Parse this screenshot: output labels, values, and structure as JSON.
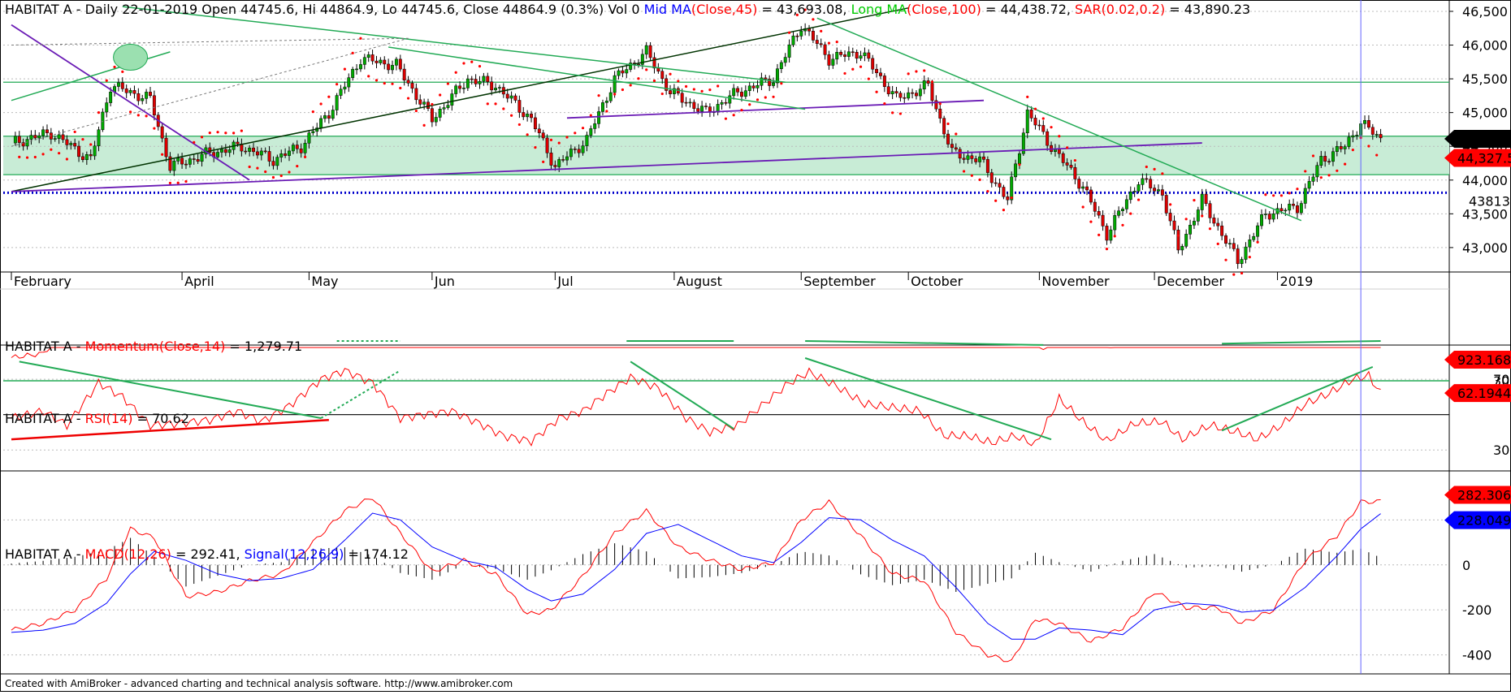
{
  "chart_data": [
    {
      "type": "candlestick",
      "panel": "price",
      "header": {
        "prefix": "HABITAT A - Daily 22-01-2019 Open 44745.6, Hi 44864.9, Lo 44745.6, Close 44864.9 (0.3%) Vol 0",
        "mid_ma_label": "Mid MA",
        "mid_ma_args": "(Close,45)",
        "mid_ma_value": " = 43,693.08,",
        "long_ma_label": "Long MA",
        "long_ma_args": "(Close,100)",
        "long_ma_value": " = 44,438.72,",
        "sar_label": "SAR",
        "sar_args": "(0.02,0.2)",
        "sar_value": " = 43,890.23"
      },
      "y_ticks": [
        "46,500",
        "46,000",
        "45,500",
        "45,000",
        "44,500",
        "44,000",
        "43,500",
        "43,000"
      ],
      "y_tick_values": [
        46500,
        46000,
        45500,
        45000,
        44500,
        44000,
        43500,
        43000
      ],
      "ylim": [
        42650,
        46620
      ],
      "x_labels": [
        "February",
        "April",
        "May",
        "Jun",
        "Jul",
        "August",
        "September",
        "October",
        "November",
        "December",
        "2019"
      ],
      "x_label_days": [
        0,
        43,
        75,
        106,
        137,
        167,
        199,
        226,
        259,
        288,
        319
      ],
      "x_range_days": [
        0,
        350
      ],
      "price_markers": [
        {
          "label": "44,610.4",
          "value": 44610.4,
          "color": "#000000"
        },
        {
          "label": "44,327.5",
          "value": 44327.5,
          "color": "#ff0000"
        }
      ],
      "support_label": "43813",
      "support_value": 43813,
      "close_path": [
        [
          0,
          44550
        ],
        [
          10,
          44700
        ],
        [
          20,
          44300
        ],
        [
          25,
          45400
        ],
        [
          35,
          45200
        ],
        [
          40,
          44200
        ],
        [
          50,
          44400
        ],
        [
          58,
          44500
        ],
        [
          66,
          44300
        ],
        [
          73,
          44500
        ],
        [
          80,
          45000
        ],
        [
          88,
          45800
        ],
        [
          97,
          45700
        ],
        [
          106,
          44900
        ],
        [
          115,
          45500
        ],
        [
          122,
          45400
        ],
        [
          131,
          44900
        ],
        [
          137,
          44200
        ],
        [
          145,
          44600
        ],
        [
          152,
          45500
        ],
        [
          160,
          45900
        ],
        [
          166,
          45300
        ],
        [
          175,
          45000
        ],
        [
          183,
          45300
        ],
        [
          192,
          45500
        ],
        [
          199,
          46300
        ],
        [
          206,
          45800
        ],
        [
          214,
          45900
        ],
        [
          223,
          45200
        ],
        [
          231,
          45400
        ],
        [
          237,
          44400
        ],
        [
          244,
          44300
        ],
        [
          251,
          43700
        ],
        [
          256,
          45000
        ],
        [
          262,
          44500
        ],
        [
          270,
          43900
        ],
        [
          276,
          43200
        ],
        [
          284,
          44000
        ],
        [
          290,
          43800
        ],
        [
          294,
          42950
        ],
        [
          300,
          43700
        ],
        [
          309,
          42800
        ],
        [
          316,
          43500
        ],
        [
          324,
          43600
        ],
        [
          330,
          44300
        ],
        [
          336,
          44500
        ],
        [
          340,
          44850
        ],
        [
          345,
          44610
        ]
      ],
      "horizontal_lines": [
        45450,
        44650,
        44080
      ],
      "band": [
        44080,
        44650
      ],
      "series": [
        {
          "name": "Mid MA",
          "color": "#0000ff"
        },
        {
          "name": "Long MA",
          "color": "#00cc00"
        },
        {
          "name": "SAR",
          "color": "#ff0000"
        }
      ]
    },
    {
      "type": "line",
      "panel": "momentum",
      "header": {
        "prefix": "HABITAT A - ",
        "label": "Momentum",
        "args": "(Close,14)",
        "value": " = 1,279.71"
      },
      "y_ticks": [
        "30"
      ],
      "value_marker": {
        "label": "923.168",
        "color": "#ff0000"
      },
      "path": [
        [
          0,
          -2400
        ],
        [
          8,
          -2100
        ],
        [
          14,
          -200
        ],
        [
          22,
          -300
        ],
        [
          28,
          600
        ],
        [
          35,
          -1000
        ],
        [
          42,
          -400
        ],
        [
          50,
          -100
        ],
        [
          57,
          300
        ],
        [
          63,
          -300
        ],
        [
          70,
          500
        ],
        [
          78,
          800
        ],
        [
          86,
          1200
        ],
        [
          93,
          1000
        ],
        [
          100,
          -100
        ],
        [
          106,
          -700
        ],
        [
          112,
          400
        ],
        [
          120,
          -200
        ],
        [
          128,
          -300
        ],
        [
          133,
          -1600
        ],
        [
          140,
          -400
        ],
        [
          146,
          -200
        ],
        [
          151,
          700
        ],
        [
          157,
          1400
        ],
        [
          163,
          900
        ],
        [
          170,
          -200
        ],
        [
          176,
          -1100
        ],
        [
          182,
          -700
        ],
        [
          188,
          500
        ],
        [
          195,
          900
        ],
        [
          202,
          1400
        ],
        [
          210,
          900
        ],
        [
          217,
          400
        ],
        [
          224,
          -200
        ],
        [
          231,
          400
        ],
        [
          236,
          -900
        ],
        [
          242,
          -1000
        ],
        [
          248,
          -1300
        ],
        [
          254,
          -1200
        ],
        [
          260,
          -1700
        ],
        [
          264,
          100
        ],
        [
          270,
          -600
        ],
        [
          276,
          -1700
        ],
        [
          283,
          -400
        ],
        [
          289,
          -500
        ],
        [
          294,
          -1400
        ],
        [
          300,
          -800
        ],
        [
          307,
          -400
        ],
        [
          312,
          -1500
        ],
        [
          318,
          -1000
        ],
        [
          325,
          100
        ],
        [
          332,
          500
        ],
        [
          338,
          1100
        ],
        [
          342,
          1000
        ],
        [
          345,
          923
        ]
      ],
      "ylim": [
        -2600,
        1900
      ]
    },
    {
      "type": "line",
      "panel": "rsi",
      "header": {
        "prefix": "HABITAT A - ",
        "label": "RSI",
        "args": "(14)",
        "value": " = 70.62"
      },
      "y_ticks": [
        "70",
        "30"
      ],
      "y_tick_values": [
        70,
        30
      ],
      "value_marker": {
        "label": "62.1944",
        "color": "#ff0000"
      },
      "path": [
        [
          0,
          48
        ],
        [
          8,
          52
        ],
        [
          14,
          44
        ],
        [
          22,
          68
        ],
        [
          28,
          60
        ],
        [
          35,
          44
        ],
        [
          42,
          45
        ],
        [
          50,
          47
        ],
        [
          57,
          52
        ],
        [
          63,
          46
        ],
        [
          70,
          55
        ],
        [
          78,
          70
        ],
        [
          84,
          75
        ],
        [
          91,
          68
        ],
        [
          98,
          48
        ],
        [
          104,
          50
        ],
        [
          111,
          52
        ],
        [
          118,
          45
        ],
        [
          124,
          38
        ],
        [
          131,
          35
        ],
        [
          138,
          48
        ],
        [
          144,
          52
        ],
        [
          150,
          62
        ],
        [
          156,
          71
        ],
        [
          163,
          65
        ],
        [
          170,
          48
        ],
        [
          176,
          40
        ],
        [
          183,
          44
        ],
        [
          189,
          55
        ],
        [
          196,
          68
        ],
        [
          201,
          74
        ],
        [
          208,
          66
        ],
        [
          215,
          56
        ],
        [
          222,
          54
        ],
        [
          229,
          52
        ],
        [
          235,
          38
        ],
        [
          241,
          38
        ],
        [
          247,
          34
        ],
        [
          253,
          38
        ],
        [
          258,
          33
        ],
        [
          264,
          59
        ],
        [
          270,
          46
        ],
        [
          276,
          35
        ],
        [
          283,
          45
        ],
        [
          290,
          46
        ],
        [
          295,
          36
        ],
        [
          302,
          44
        ],
        [
          309,
          40
        ],
        [
          314,
          36
        ],
        [
          320,
          44
        ],
        [
          326,
          56
        ],
        [
          332,
          62
        ],
        [
          338,
          70
        ],
        [
          342,
          72
        ],
        [
          345,
          62
        ]
      ],
      "ylim": [
        20,
        82
      ]
    },
    {
      "type": "line",
      "panel": "macd",
      "header": {
        "prefix": "HABITAT A - ",
        "macd_label": "MACD",
        "macd_args": "(12,26)",
        "macd_value": " = 292.41,",
        "signal_label": "Signal",
        "signal_args": "(12,26,9)",
        "signal_value": " = 174.12"
      },
      "y_ticks": [
        "200",
        "0",
        "-200",
        "-400"
      ],
      "y_tick_values": [
        200,
        0,
        -200,
        -400
      ],
      "markers": [
        {
          "label": "282.306",
          "color": "#ff0000"
        },
        {
          "label": "228.049",
          "color": "#0000ff"
        }
      ],
      "series": [
        {
          "name": "MACD",
          "color": "#ff0000",
          "points": [
            [
              0,
              -290
            ],
            [
              8,
              -260
            ],
            [
              16,
              -200
            ],
            [
              24,
              -60
            ],
            [
              30,
              160
            ],
            [
              36,
              120
            ],
            [
              44,
              -140
            ],
            [
              52,
              -120
            ],
            [
              60,
              -70
            ],
            [
              68,
              -40
            ],
            [
              76,
              100
            ],
            [
              84,
              240
            ],
            [
              91,
              300
            ],
            [
              98,
              140
            ],
            [
              106,
              -30
            ],
            [
              114,
              20
            ],
            [
              122,
              -40
            ],
            [
              130,
              -220
            ],
            [
              136,
              -200
            ],
            [
              144,
              -50
            ],
            [
              152,
              140
            ],
            [
              160,
              240
            ],
            [
              168,
              80
            ],
            [
              176,
              20
            ],
            [
              184,
              -20
            ],
            [
              192,
              10
            ],
            [
              199,
              200
            ],
            [
              206,
              280
            ],
            [
              214,
              130
            ],
            [
              222,
              -40
            ],
            [
              230,
              -70
            ],
            [
              238,
              -300
            ],
            [
              246,
              -400
            ],
            [
              252,
              -430
            ],
            [
              258,
              -240
            ],
            [
              264,
              -260
            ],
            [
              272,
              -340
            ],
            [
              280,
              -280
            ],
            [
              288,
              -120
            ],
            [
              296,
              -190
            ],
            [
              304,
              -190
            ],
            [
              310,
              -260
            ],
            [
              318,
              -200
            ],
            [
              326,
              20
            ],
            [
              334,
              130
            ],
            [
              340,
              280
            ],
            [
              345,
              282
            ]
          ]
        },
        {
          "name": "Signal",
          "color": "#0000ff",
          "points": [
            [
              0,
              -300
            ],
            [
              8,
              -290
            ],
            [
              16,
              -260
            ],
            [
              24,
              -170
            ],
            [
              30,
              -40
            ],
            [
              36,
              60
            ],
            [
              44,
              20
            ],
            [
              52,
              -40
            ],
            [
              60,
              -70
            ],
            [
              68,
              -60
            ],
            [
              76,
              -20
            ],
            [
              84,
              110
            ],
            [
              91,
              230
            ],
            [
              98,
              200
            ],
            [
              106,
              80
            ],
            [
              114,
              20
            ],
            [
              122,
              -10
            ],
            [
              130,
              -110
            ],
            [
              136,
              -160
            ],
            [
              144,
              -130
            ],
            [
              152,
              -20
            ],
            [
              160,
              140
            ],
            [
              168,
              180
            ],
            [
              176,
              110
            ],
            [
              184,
              40
            ],
            [
              192,
              10
            ],
            [
              199,
              100
            ],
            [
              206,
              210
            ],
            [
              214,
              200
            ],
            [
              222,
              110
            ],
            [
              230,
              40
            ],
            [
              238,
              -100
            ],
            [
              246,
              -260
            ],
            [
              252,
              -330
            ],
            [
              258,
              -330
            ],
            [
              264,
              -280
            ],
            [
              272,
              -290
            ],
            [
              280,
              -310
            ],
            [
              288,
              -200
            ],
            [
              296,
              -170
            ],
            [
              304,
              -180
            ],
            [
              310,
              -210
            ],
            [
              318,
              -200
            ],
            [
              326,
              -100
            ],
            [
              334,
              40
            ],
            [
              340,
              160
            ],
            [
              345,
              228
            ]
          ]
        }
      ],
      "ylim": [
        -470,
        360
      ]
    }
  ],
  "footer": "Created with AmiBroker - advanced charting and technical analysis software. http://www.amibroker.com"
}
